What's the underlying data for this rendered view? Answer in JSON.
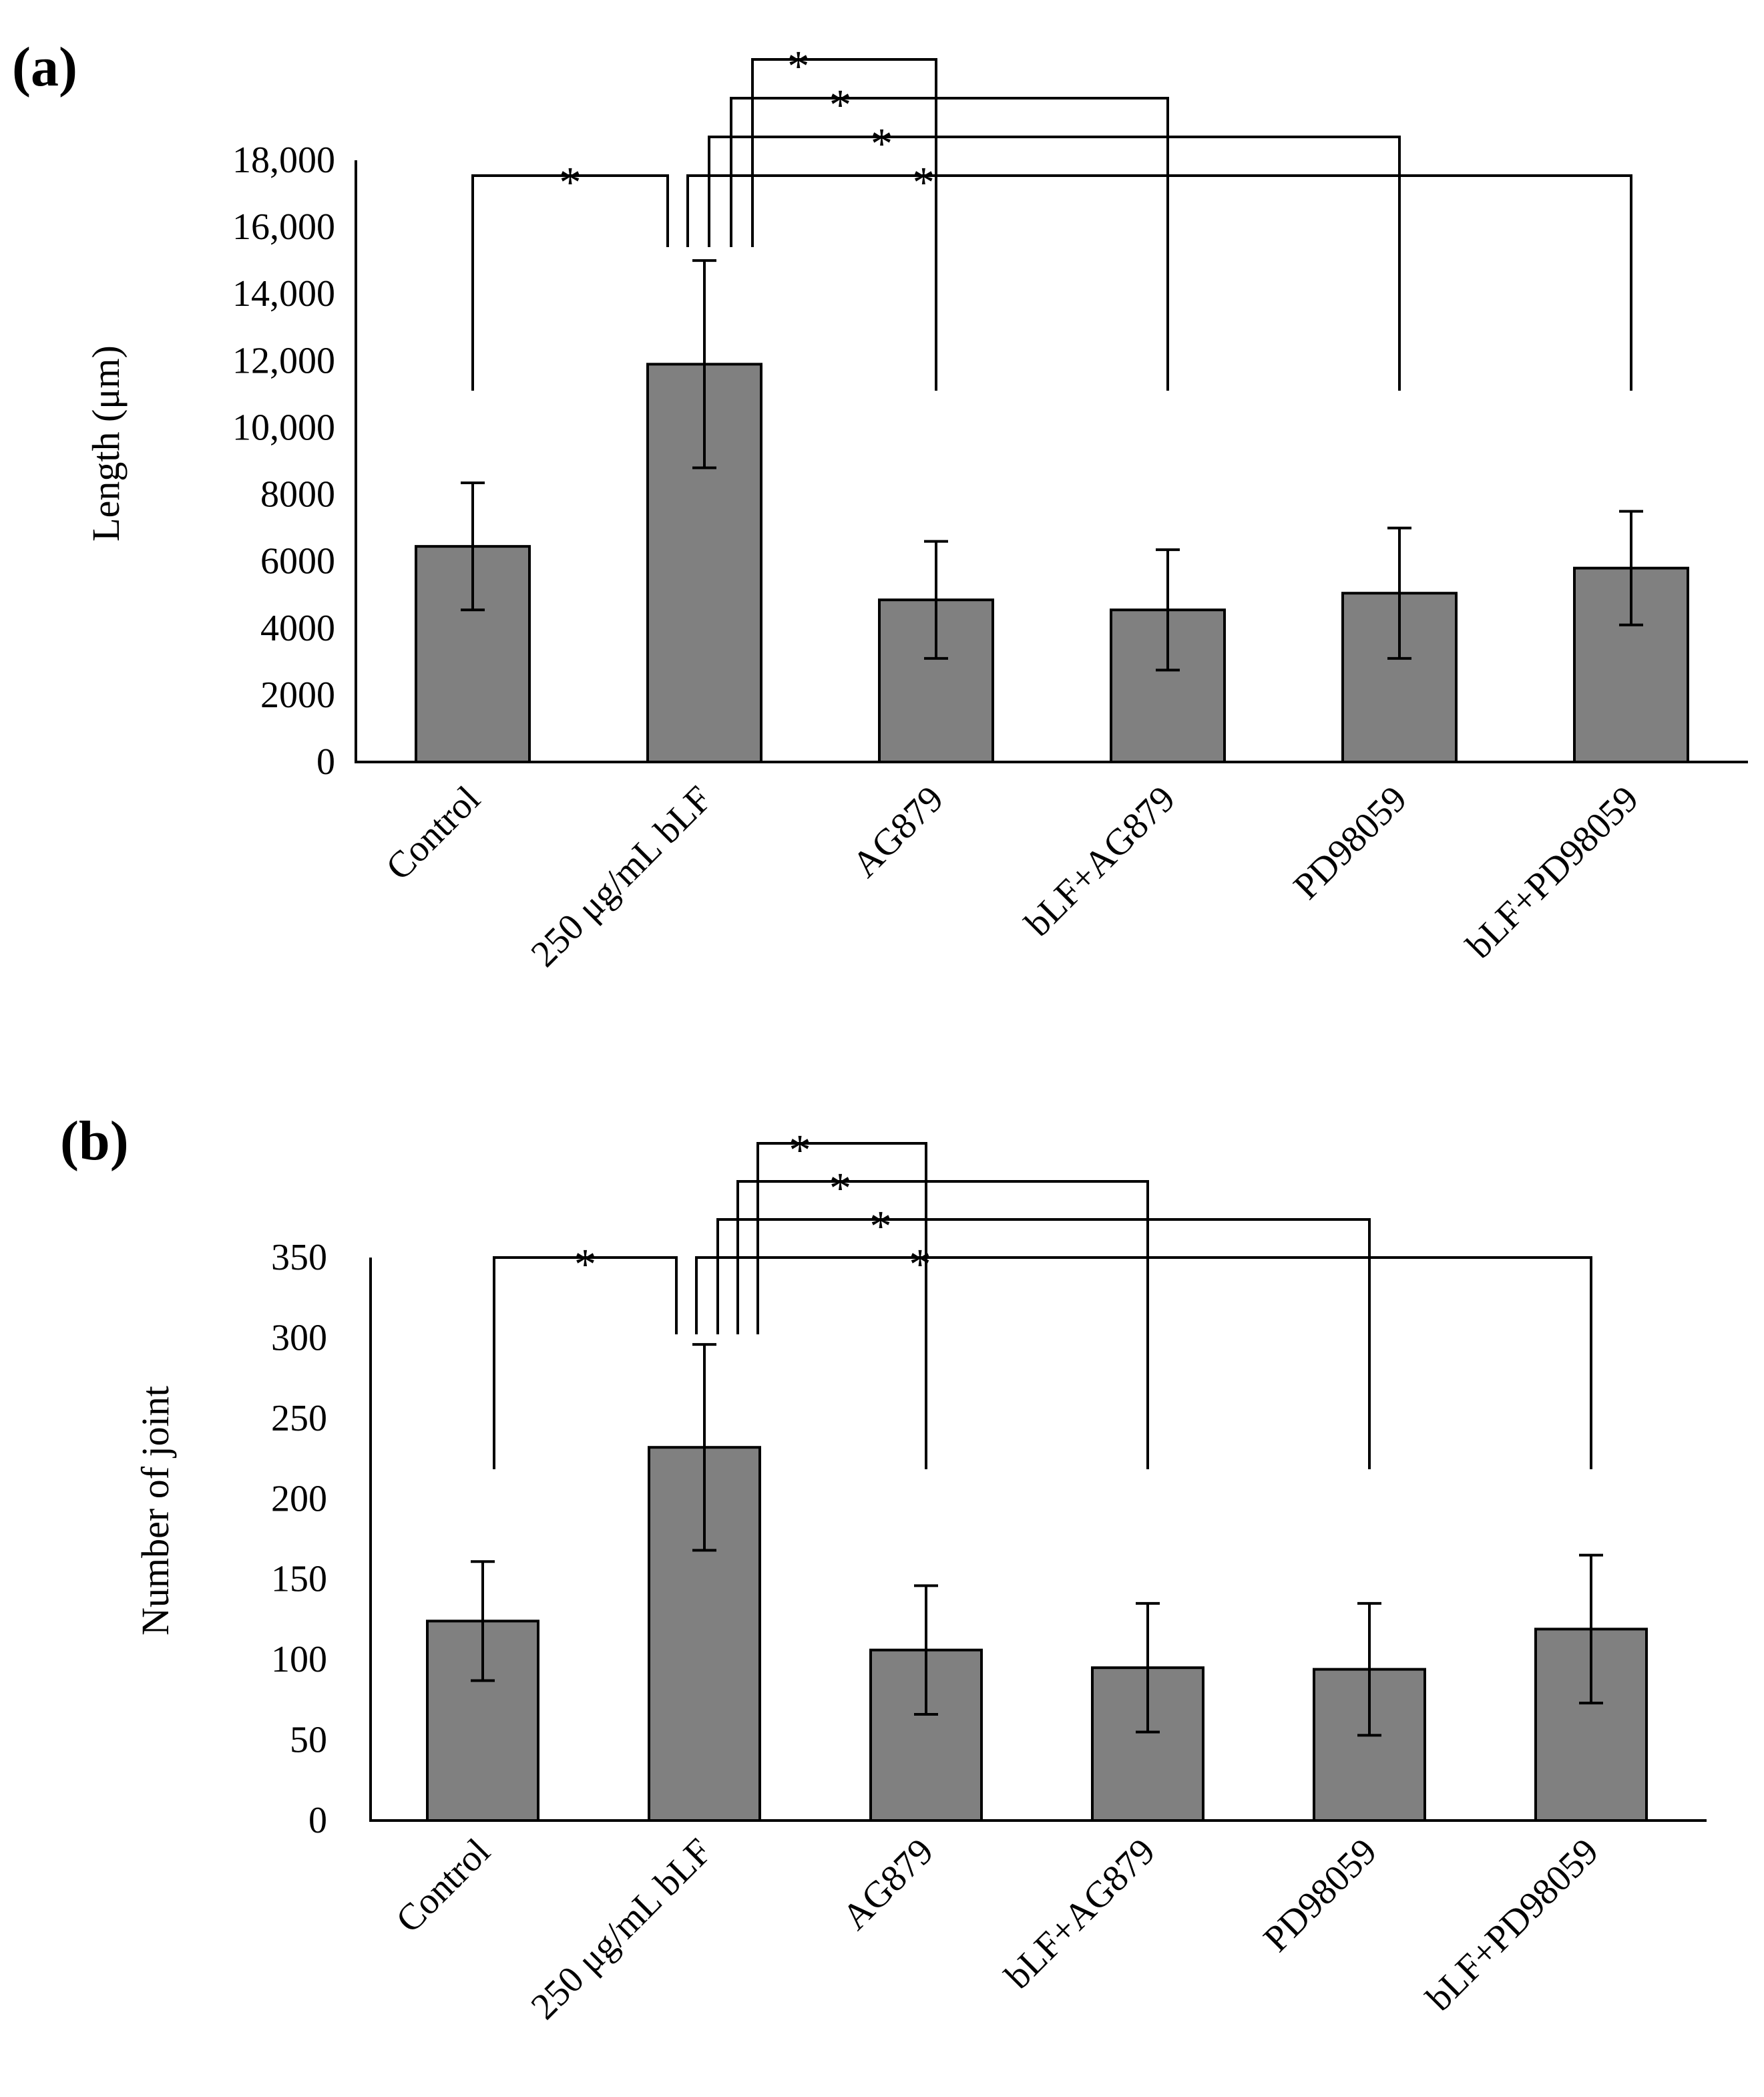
{
  "figure": {
    "panels": [
      "(a)",
      "(b)"
    ]
  },
  "chart_data": [
    {
      "type": "bar",
      "panel_label": "(a)",
      "title": "",
      "xlabel": "",
      "ylabel": "Length (μm)",
      "ylim": [
        0,
        18000
      ],
      "yticks": [
        0,
        2000,
        4000,
        6000,
        8000,
        10000,
        12000,
        14000,
        16000,
        18000
      ],
      "ytick_labels": [
        "0",
        "2000",
        "4000",
        "6000",
        "8000",
        "10,000",
        "12,000",
        "14,000",
        "16,000",
        "18,000"
      ],
      "categories": [
        "Control",
        "250 μg/mL bLF",
        "AG879",
        "bLF+AG879",
        "PD98059",
        "bLF+PD98059"
      ],
      "values": [
        6450,
        11900,
        4850,
        4550,
        5050,
        5800
      ],
      "errors": [
        1900,
        3100,
        1750,
        1800,
        1950,
        1700
      ],
      "bar_color": "#808080",
      "significance": [
        {
          "from": "Control",
          "to": "250 μg/mL bLF",
          "label": "*"
        },
        {
          "from": "250 μg/mL bLF",
          "to": "AG879",
          "label": "*"
        },
        {
          "from": "250 μg/mL bLF",
          "to": "bLF+AG879",
          "label": "*"
        },
        {
          "from": "250 μg/mL bLF",
          "to": "PD98059",
          "label": "*"
        },
        {
          "from": "250 μg/mL bLF",
          "to": "bLF+PD98059",
          "label": "*"
        }
      ]
    },
    {
      "type": "bar",
      "panel_label": "(b)",
      "title": "",
      "xlabel": "",
      "ylabel": "Number of joint",
      "ylim": [
        0,
        350
      ],
      "yticks": [
        0,
        50,
        100,
        150,
        200,
        250,
        300,
        350
      ],
      "ytick_labels": [
        "0",
        "50",
        "100",
        "150",
        "200",
        "250",
        "300",
        "350"
      ],
      "categories": [
        "Control",
        "250 μg/mL bLF",
        "AG879",
        "bLF+AG879",
        "PD98059",
        "bLF+PD98059"
      ],
      "values": [
        124,
        232,
        106,
        95,
        94,
        119
      ],
      "errors": [
        37,
        64,
        40,
        40,
        41,
        46
      ],
      "bar_color": "#808080",
      "significance": [
        {
          "from": "Control",
          "to": "250 μg/mL bLF",
          "label": "*"
        },
        {
          "from": "250 μg/mL bLF",
          "to": "AG879",
          "label": "*"
        },
        {
          "from": "250 μg/mL bLF",
          "to": "bLF+AG879",
          "label": "*"
        },
        {
          "from": "250 μg/mL bLF",
          "to": "PD98059",
          "label": "*"
        },
        {
          "from": "250 μg/mL bLF",
          "to": "bLF+PD98059",
          "label": "*"
        }
      ]
    }
  ]
}
